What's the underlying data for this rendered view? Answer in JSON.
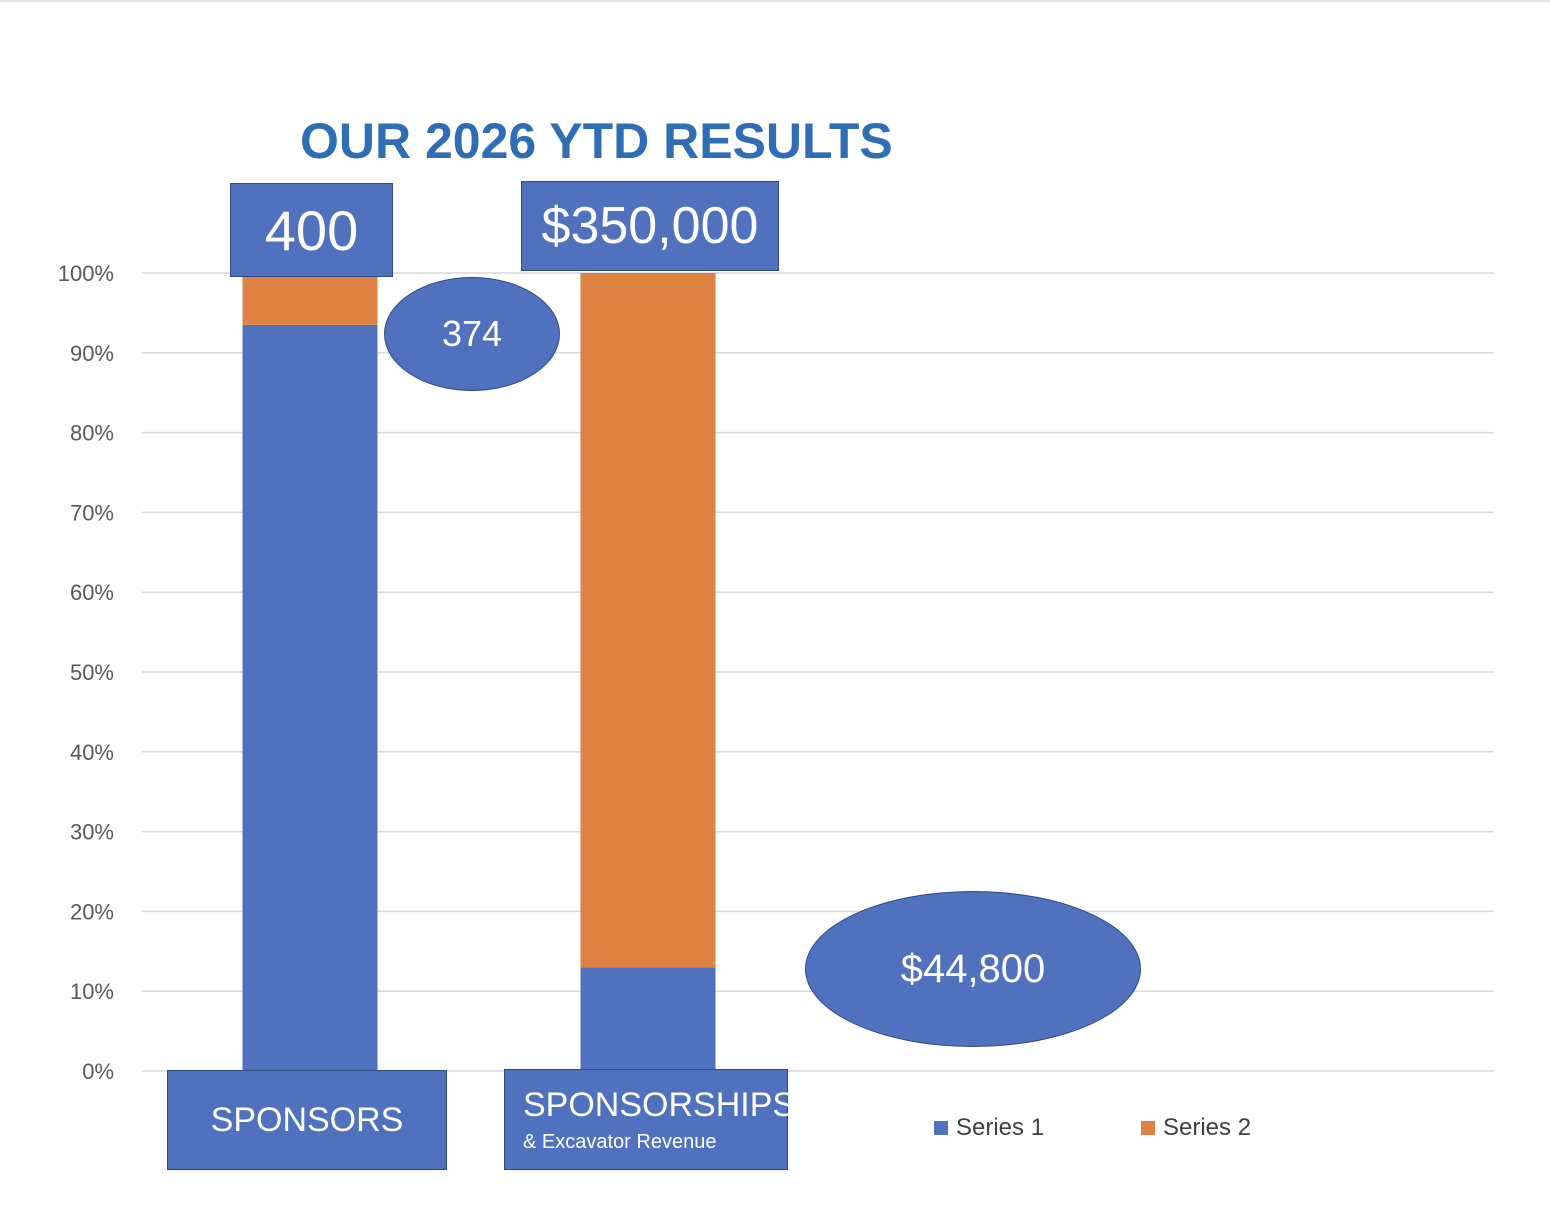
{
  "title": "OUR 2026 YTD RESULTS",
  "colors": {
    "series1": "#4F71BE",
    "series2": "#DE8344",
    "title": "#2F6DB5",
    "grid": "#d9d9d9",
    "axis_text": "#595959"
  },
  "chart_data": {
    "type": "bar",
    "stacked": "100%",
    "categories": [
      "SPONSORS",
      "SPONSORSHIPS & Excavator Revenue"
    ],
    "series": [
      {
        "name": "Series 1",
        "values": [
          93.5,
          13
        ]
      },
      {
        "name": "Series 2",
        "values": [
          6.5,
          87
        ]
      }
    ],
    "ylim": [
      0,
      100
    ],
    "y_ticks": [
      "0%",
      "10%",
      "20%",
      "30%",
      "40%",
      "50%",
      "60%",
      "70%",
      "80%",
      "90%",
      "100%"
    ],
    "grid": true,
    "legend": "bottom-right"
  },
  "labels": {
    "sponsors_goal": "400",
    "sponsors_actual": "374",
    "revenue_goal": "$350,000",
    "revenue_actual": "$44,800",
    "cat1_main": "SPONSORS",
    "cat2_main": "SPONSORSHIPS",
    "cat2_sub": "& Excavator Revenue"
  }
}
